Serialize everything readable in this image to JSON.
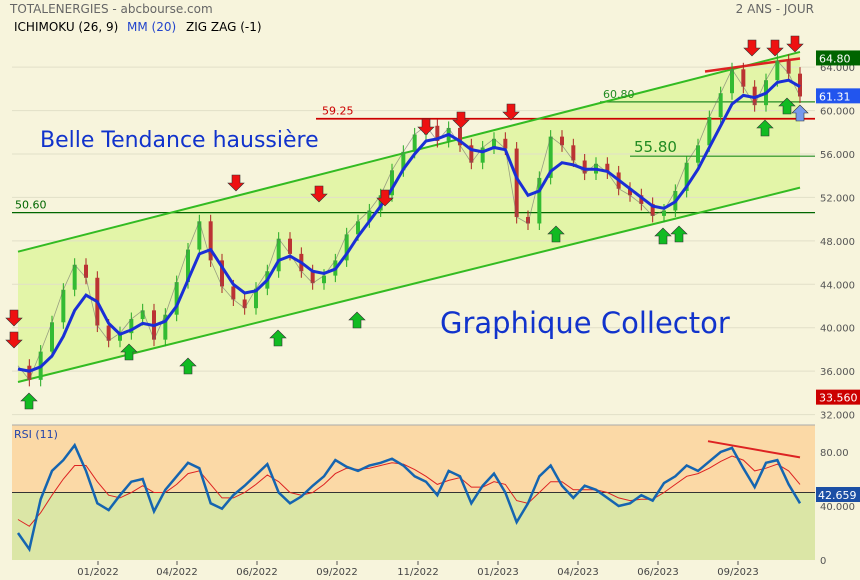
{
  "header": {
    "source": "TOTALENERGIES - abcbourse.com",
    "period": "2 ANS - JOUR"
  },
  "indicators": {
    "ichimoku": "ICHIMOKU (26, 9)",
    "mm": "MM (20)",
    "zigzag": "ZIG ZAG (-1)"
  },
  "annotations": {
    "trend": "Belle Tendance haussière",
    "collector": "Graphique Collector"
  },
  "chart_data": {
    "type": "line",
    "title": "TOTALENERGIES - abcbourse.com",
    "price_axis": {
      "ticks": [
        "64.000",
        "60.000",
        "56.000",
        "52.000",
        "48.000",
        "44.000",
        "40.000",
        "36.000",
        "32.000"
      ],
      "ylim": [
        31.5,
        66.5
      ]
    },
    "x_axis": {
      "ticks": [
        "01/2022",
        "04/2022",
        "06/2022",
        "09/2022",
        "11/2022",
        "01/2023",
        "04/2023",
        "06/2023",
        "09/2023"
      ]
    },
    "levels": [
      {
        "label": "59.25",
        "value": 59.25,
        "color": "#cc0000"
      },
      {
        "label": "50.60",
        "value": 50.6,
        "color": "#006600"
      },
      {
        "label": "60.80",
        "value": 60.8,
        "color": "#228b22"
      },
      {
        "label": "55.80",
        "value": 55.8,
        "color": "#228b22"
      }
    ],
    "badges": [
      {
        "label": "64.80",
        "value": 64.8,
        "color": "#006400"
      },
      {
        "label": "61.31",
        "value": 61.31,
        "color": "#2255ee"
      },
      {
        "label": "33.560",
        "value": 33.56,
        "color": "#cc0000"
      }
    ],
    "series": [
      {
        "name": "Cours",
        "values": [
          36.5,
          35.2,
          37.8,
          40.5,
          43.5,
          45.8,
          44.6,
          40.2,
          38.8,
          39.5,
          40.8,
          41.6,
          38.9,
          41.2,
          44.2,
          47.2,
          49.8,
          46.2,
          43.8,
          42.6,
          41.8,
          43.6,
          45.2,
          48.2,
          46.8,
          45.2,
          44.1,
          44.8,
          46.2,
          48.6,
          49.8,
          50.8,
          52.2,
          54.5,
          56.2,
          57.8,
          58.6,
          57.2,
          58.4,
          56.8,
          55.2,
          56.6,
          57.4,
          56.5,
          50.2,
          49.6,
          53.8,
          57.6,
          56.8,
          55.4,
          54.2,
          55.1,
          54.3,
          52.8,
          52.2,
          51.4,
          50.3,
          50.8,
          52.6,
          55.2,
          56.8,
          59.4,
          61.6,
          63.8,
          62.2,
          60.5,
          62.8,
          64.6,
          63.4,
          61.3
        ]
      },
      {
        "name": "MM (20)",
        "values": [
          36.2,
          36.0,
          36.4,
          37.4,
          39.2,
          41.6,
          43.0,
          42.4,
          40.4,
          39.4,
          39.8,
          40.4,
          40.2,
          40.6,
          42.0,
          44.4,
          46.8,
          47.2,
          45.6,
          44.0,
          43.2,
          43.4,
          44.4,
          46.2,
          46.6,
          46.0,
          45.2,
          45.0,
          45.4,
          46.8,
          48.4,
          49.8,
          51.2,
          52.8,
          54.6,
          56.0,
          57.2,
          57.4,
          57.8,
          57.2,
          56.4,
          56.2,
          56.6,
          56.4,
          53.8,
          52.2,
          52.6,
          54.4,
          55.2,
          55.0,
          54.6,
          54.6,
          54.4,
          53.6,
          52.8,
          52.0,
          51.2,
          51.0,
          51.6,
          53.0,
          54.6,
          56.6,
          58.6,
          60.6,
          61.4,
          61.2,
          61.6,
          62.6,
          62.8,
          62.2
        ]
      }
    ],
    "channel": {
      "upper": [
        [
          0,
          47
        ],
        [
          69,
          65.4
        ]
      ],
      "lower": [
        [
          0,
          35
        ],
        [
          69,
          52.9
        ]
      ]
    },
    "resistance_line": [
      [
        56,
        63.6
      ],
      [
        69,
        64.8
      ]
    ],
    "rsi": {
      "label": "RSI (11)",
      "ticks": [
        "80.00",
        "40.000",
        "0"
      ],
      "badge": "42.659",
      "ylim": [
        0,
        100
      ],
      "reference": 50,
      "values": [
        20,
        8,
        45,
        66,
        74,
        85,
        66,
        42,
        37,
        48,
        58,
        60,
        36,
        52,
        62,
        72,
        68,
        42,
        38,
        48,
        55,
        63,
        71,
        50,
        42,
        47,
        55,
        62,
        74,
        69,
        66,
        70,
        72,
        75,
        70,
        62,
        58,
        48,
        66,
        62,
        42,
        55,
        64,
        50,
        28,
        42,
        62,
        70,
        55,
        46,
        55,
        52,
        46,
        40,
        42,
        48,
        44,
        57,
        62,
        70,
        66,
        73,
        80,
        83,
        68,
        54,
        72,
        74,
        56,
        42
      ],
      "signal": [
        30,
        25,
        35,
        48,
        60,
        70,
        70,
        58,
        48,
        46,
        50,
        55,
        50,
        50,
        56,
        64,
        66,
        56,
        46,
        46,
        50,
        56,
        63,
        58,
        50,
        48,
        50,
        56,
        64,
        68,
        67,
        68,
        70,
        72,
        71,
        67,
        62,
        56,
        59,
        61,
        54,
        54,
        58,
        56,
        44,
        42,
        50,
        58,
        58,
        52,
        52,
        52,
        50,
        46,
        44,
        45,
        45,
        50,
        56,
        62,
        64,
        68,
        73,
        77,
        74,
        66,
        68,
        71,
        66,
        56
      ]
    }
  }
}
